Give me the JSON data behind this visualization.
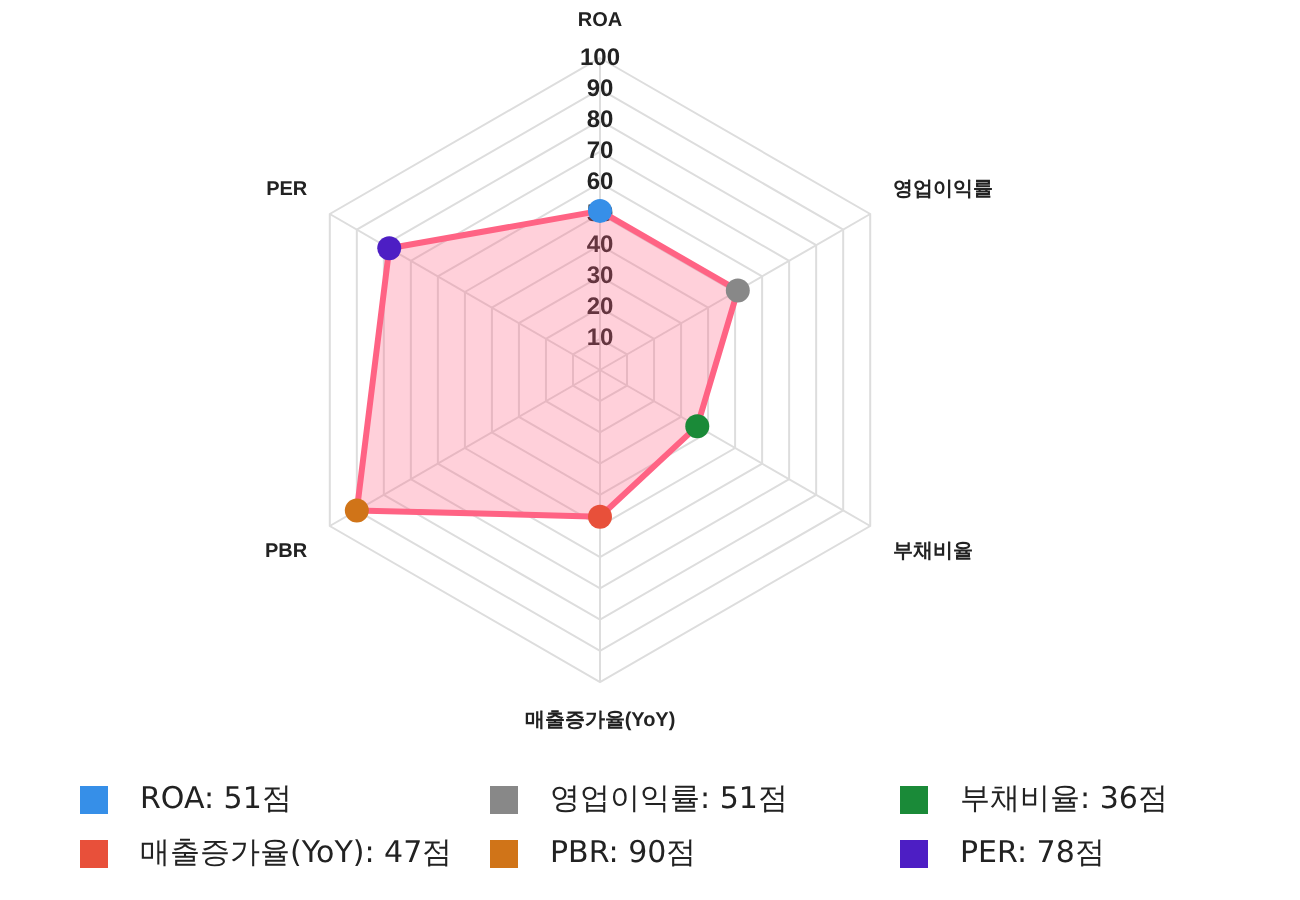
{
  "chart_data": {
    "type": "radar",
    "categories": [
      "ROA",
      "영업이익률",
      "부채비율",
      "매출증가율(YoY)",
      "PBR",
      "PER"
    ],
    "series": [
      {
        "color": "#ff6384",
        "colors": [
          "#368fe8",
          "#888888",
          "#1a8a38",
          "#e8503a",
          "#d07418",
          "#4d1ec4"
        ],
        "values": [
          51,
          51,
          36,
          47,
          90,
          78
        ]
      }
    ],
    "ylim": [
      0,
      100
    ],
    "yticks": [
      10,
      20,
      30,
      40,
      50,
      60,
      70,
      80,
      90,
      100
    ],
    "grid": true,
    "marker": "circle",
    "annotations": [
      "ROA: 51점",
      "영업이익률: 51점",
      "부채비율: 36점",
      "매출증가율(YoY): 47점",
      "PBR: 90점",
      "PER: 78점"
    ]
  }
}
